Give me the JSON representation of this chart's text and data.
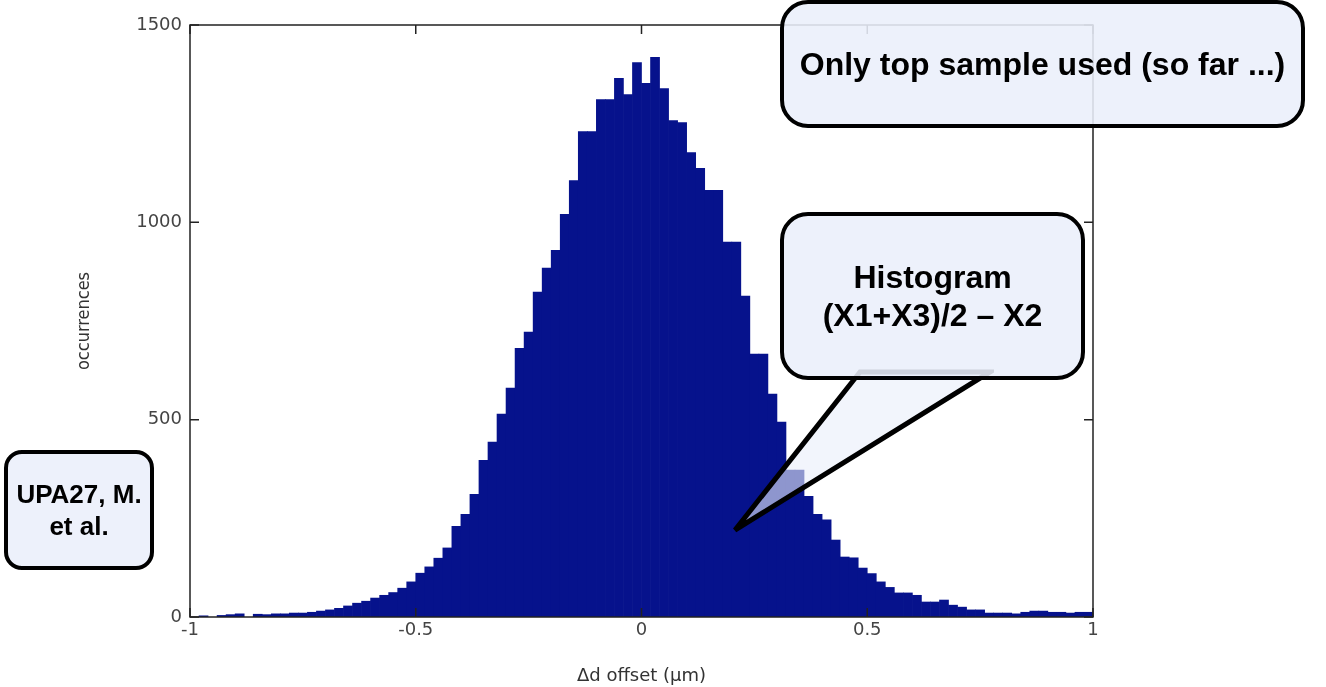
{
  "chart_data": {
    "type": "histogram",
    "xlabel": "Δd offset (μm)",
    "ylabel": "occurrences",
    "color": "#06128c",
    "bins": [
      -1,
      -0.98,
      -0.96,
      -0.94,
      -0.92,
      -0.9,
      -0.88,
      -0.86,
      -0.84,
      -0.82,
      -0.8,
      -0.78,
      -0.76,
      -0.74,
      -0.72,
      -0.7,
      -0.68,
      -0.66,
      -0.64,
      -0.62,
      -0.6,
      -0.58,
      -0.56,
      -0.54,
      -0.52,
      -0.5,
      -0.48,
      -0.46,
      -0.44,
      -0.42,
      -0.4,
      -0.38,
      -0.36,
      -0.34,
      -0.32,
      -0.3,
      -0.28,
      -0.26,
      -0.24,
      -0.22,
      -0.2,
      -0.18,
      -0.16,
      -0.14,
      -0.12,
      -0.1,
      -0.08,
      -0.06,
      -0.04,
      -0.02,
      0,
      0.02,
      0.04,
      0.06,
      0.08,
      0.1,
      0.12,
      0.14,
      0.16,
      0.18,
      0.2,
      0.22,
      0.24,
      0.26,
      0.28,
      0.3,
      0.32,
      0.34,
      0.36,
      0.38,
      0.4,
      0.42,
      0.44,
      0.46,
      0.48,
      0.5,
      0.52,
      0.54,
      0.56,
      0.58,
      0.6,
      0.62,
      0.64,
      0.66,
      0.68,
      0.7,
      0.72,
      0.74,
      0.76,
      0.78,
      0.8,
      0.82,
      0.84,
      0.86,
      0.88,
      0.9,
      0.92,
      0.94,
      0.96,
      0.98,
      1
    ],
    "values": [
      null,
      3,
      null,
      4,
      6,
      8,
      null,
      7,
      6,
      8,
      8,
      10,
      10,
      12,
      15,
      18,
      22,
      28,
      35,
      40,
      48,
      55,
      62,
      73,
      89,
      111,
      127,
      149,
      175,
      230,
      260,
      311,
      397,
      443,
      514,
      580,
      681,
      722,
      823,
      884,
      929,
      1020,
      1106,
      1230,
      1230,
      1311,
      1311,
      1365,
      1324,
      1405,
      1352,
      1418,
      1339,
      1258,
      1253,
      1177,
      1137,
      1081,
      1081,
      950,
      950,
      813,
      666,
      666,
      565,
      494,
      372,
      372,
      306,
      260,
      246,
      195,
      152,
      150,
      124,
      110,
      89,
      75,
      61,
      61,
      55,
      38,
      38,
      43,
      30,
      25,
      18,
      18,
      10,
      10,
      10,
      8,
      12,
      15,
      15,
      12,
      12,
      10,
      12,
      12
    ],
    "xlim": [
      -1,
      1
    ],
    "ylim": [
      0,
      1500
    ],
    "xticks": [
      -1,
      -0.5,
      0,
      0.5,
      1
    ],
    "yticks": [
      0,
      500,
      1000,
      1500
    ],
    "annotations": [
      "Only top sample used (so far ...)",
      "Histogram (X1+X3)/2 – X2",
      "UPA27, M. et al."
    ]
  }
}
